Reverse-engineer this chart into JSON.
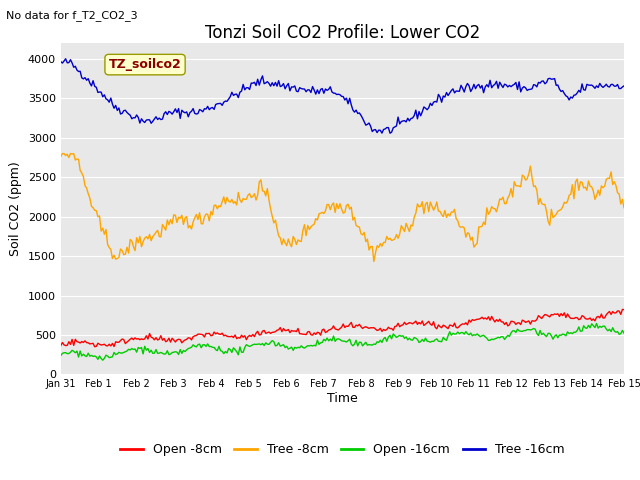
{
  "title": "Tonzi Soil CO2 Profile: Lower CO2",
  "subtitle": "No data for f_T2_CO2_3",
  "ylabel": "Soil CO2 (ppm)",
  "xlabel": "Time",
  "legend_box_text": "TZ_soilco2",
  "ylim": [
    0,
    4200
  ],
  "yticks": [
    0,
    500,
    1000,
    1500,
    2000,
    2500,
    3000,
    3500,
    4000
  ],
  "xtick_labels": [
    "Jan 31",
    "Feb 1",
    "Feb 2",
    "Feb 3",
    "Feb 4",
    "Feb 5",
    "Feb 6",
    "Feb 7",
    "Feb 8",
    "Feb 9",
    "Feb 10",
    "Feb 11",
    "Feb 12",
    "Feb 13",
    "Feb 14",
    "Feb 15"
  ],
  "fig_bg_color": "#ffffff",
  "plot_bg_color": "#e8e8e8",
  "legend_entries": [
    "Open -8cm",
    "Tree -8cm",
    "Open -16cm",
    "Tree -16cm"
  ],
  "legend_colors": [
    "#ff0000",
    "#ffa500",
    "#00cc00",
    "#0000cc"
  ],
  "line_colors": {
    "open_8": "#ff0000",
    "tree_8": "#ffa500",
    "open_16": "#00cc00",
    "tree_16": "#0000cc"
  },
  "title_fontsize": 12,
  "axis_fontsize": 9,
  "tick_fontsize": 8,
  "subtitle_fontsize": 8,
  "legend_fontsize": 9
}
